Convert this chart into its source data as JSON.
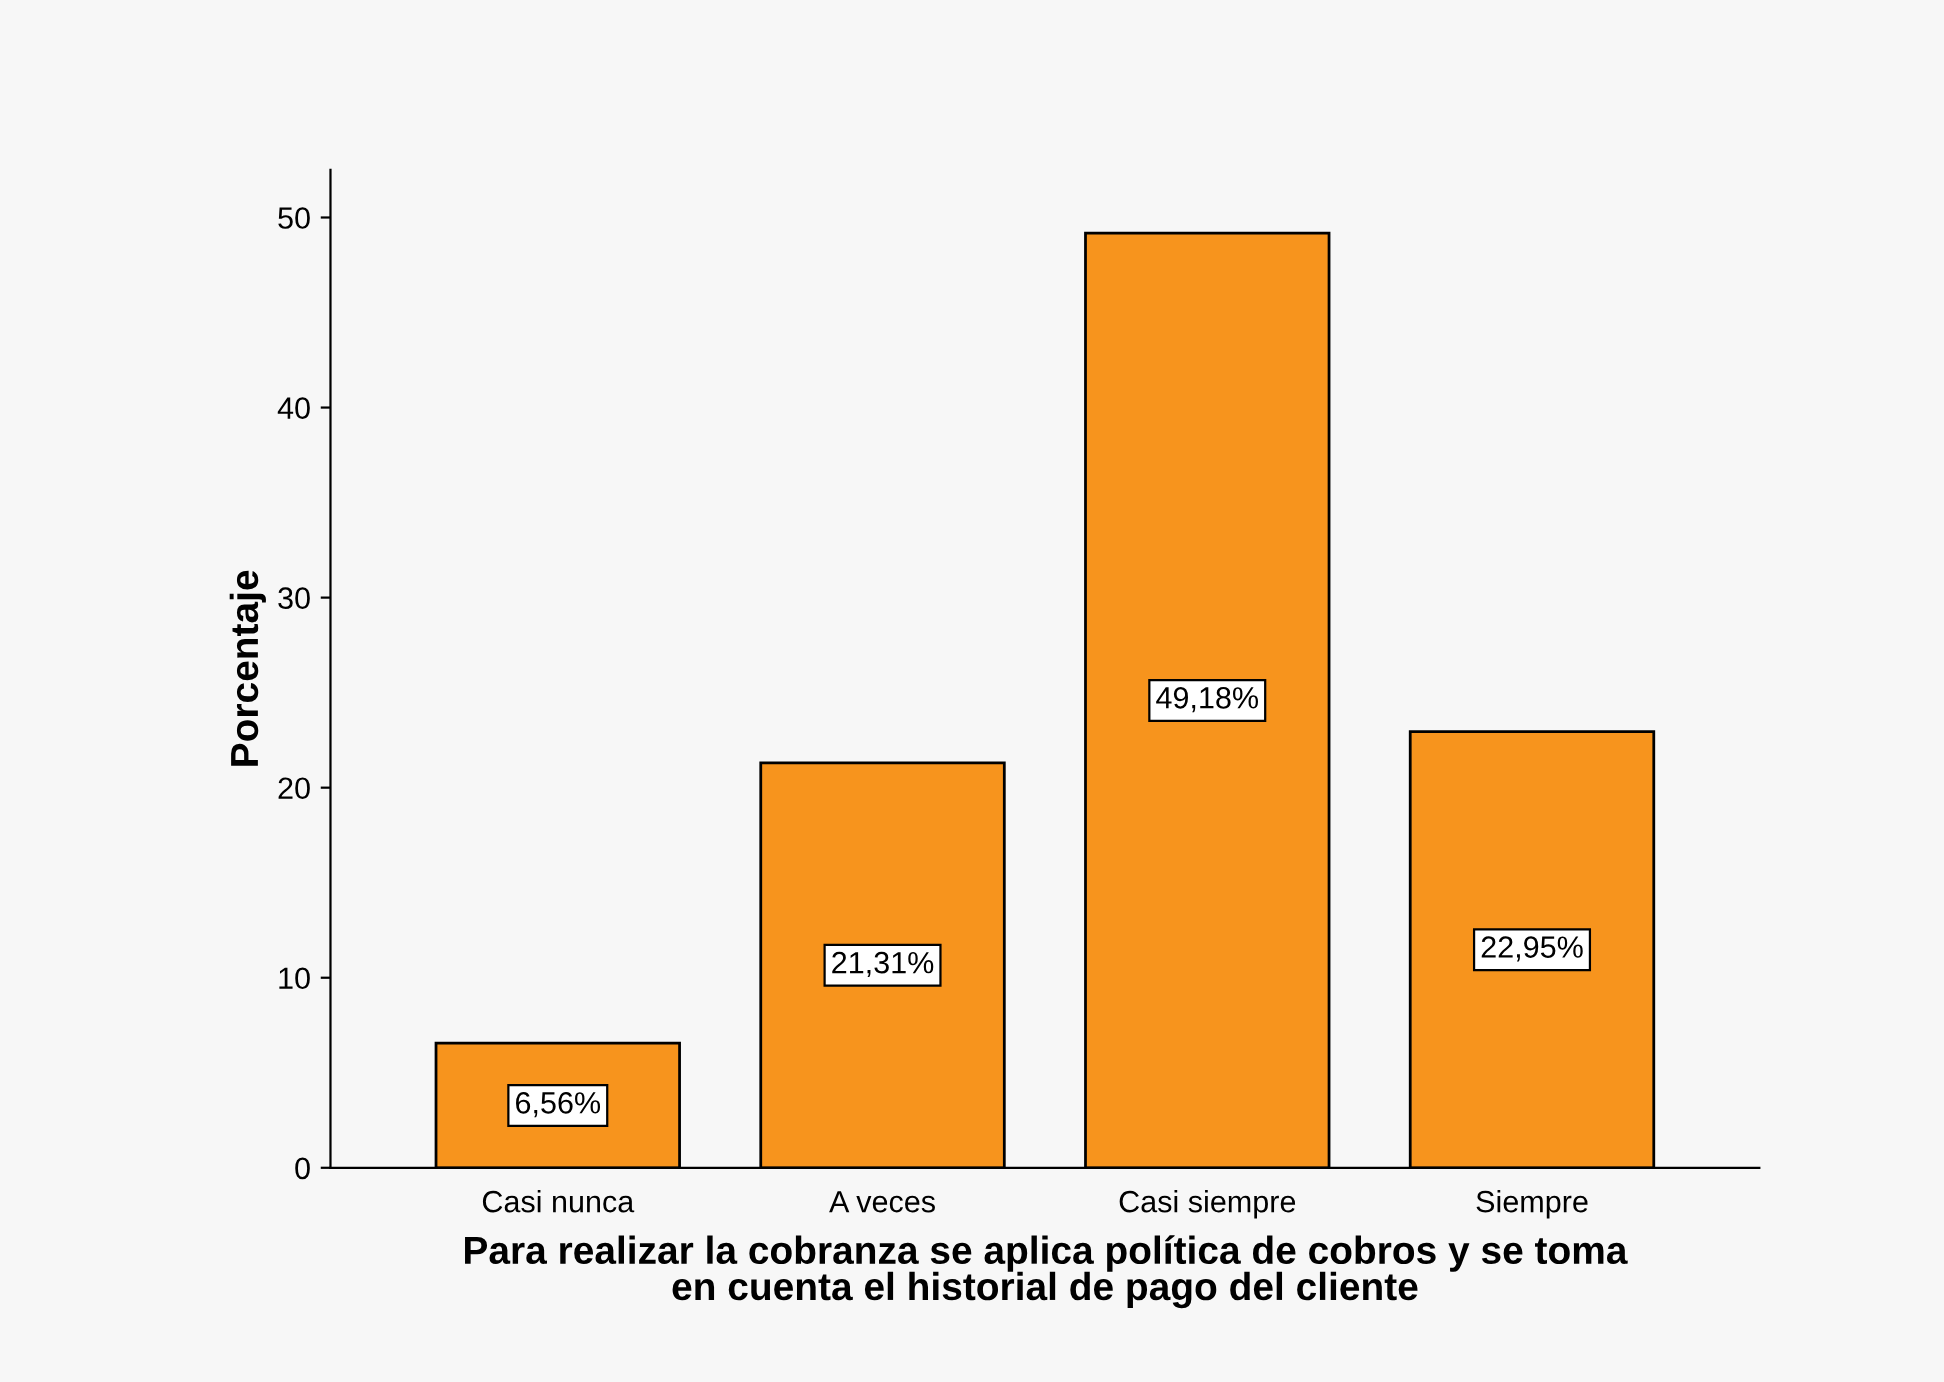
{
  "chart_data": {
    "type": "bar",
    "xlabel": "Para realizar la cobranza se aplica política de cobros y se toma\nen cuenta el historial de pago del cliente",
    "ylabel": "Porcentaje",
    "categories": [
      "Casi nunca",
      "A veces",
      "Casi siempre",
      "Siempre"
    ],
    "values": [
      6.56,
      21.31,
      49.18,
      22.95
    ],
    "value_labels": [
      "6,56%",
      "21,31%",
      "49,18%",
      "22,95%"
    ],
    "color": "#f7941d",
    "ylim": [
      0,
      52.5
    ],
    "yticks": [
      0,
      10,
      20,
      30,
      40,
      50
    ],
    "grid": false
  }
}
